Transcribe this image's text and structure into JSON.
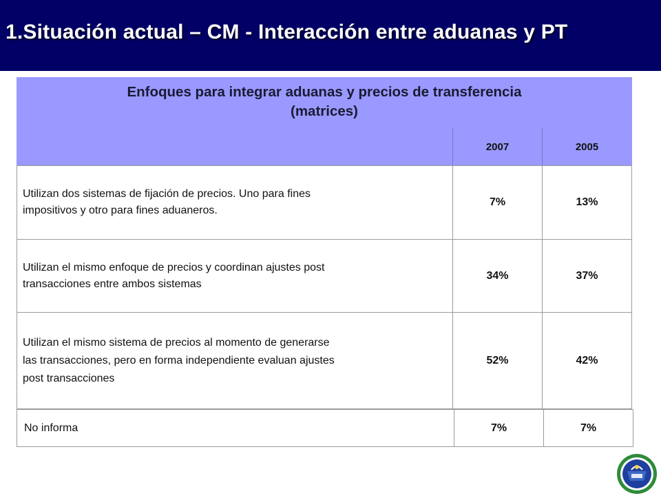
{
  "slide": {
    "title": "1.Situación actual – CM - Interacción entre aduanas y PT"
  },
  "table": {
    "header_line1": "Enfoques para integrar aduanas y precios de transferencia",
    "header_line2": "(matrices)",
    "years": [
      "2007",
      "2005"
    ],
    "rows": [
      {
        "line1": "Utilizan dos sistemas de fijación de precios. Uno para fines",
        "line2": "impositivos y otro para fines aduaneros.",
        "line3": "",
        "v2007": "7%",
        "v2005": "13%"
      },
      {
        "line1": "Utilizan el mismo enfoque de precios y coordinan ajustes post",
        "line2": "transacciones entre ambos sistemas",
        "line3": "",
        "v2007": "34%",
        "v2005": "37%"
      },
      {
        "line1": "Utilizan el mismo sistema de precios al momento de generarse",
        "line2": "las transacciones, pero en forma independiente evaluan ajustes",
        "line3": "post transacciones",
        "v2007": "52%",
        "v2005": "42%"
      },
      {
        "line1": "No informa",
        "line2": "",
        "line3": "",
        "v2007": "7%",
        "v2005": "7%"
      }
    ]
  },
  "colors": {
    "title_bar": "#000066",
    "header_fill": "#9999ff",
    "logo_green": "#2e8b3a",
    "logo_blue": "#1f3f9f"
  },
  "logo": {
    "icon": "ciat-seal-logo"
  }
}
